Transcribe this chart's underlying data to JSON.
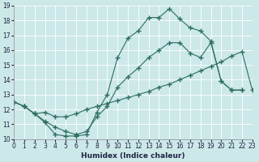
{
  "xlabel": "Humidex (Indice chaleur)",
  "xlim": [
    0,
    23
  ],
  "ylim": [
    10,
    19
  ],
  "xticks": [
    0,
    1,
    2,
    3,
    4,
    5,
    6,
    7,
    8,
    9,
    10,
    11,
    12,
    13,
    14,
    15,
    16,
    17,
    18,
    19,
    20,
    21,
    22,
    23
  ],
  "yticks": [
    10,
    11,
    12,
    13,
    14,
    15,
    16,
    17,
    18,
    19
  ],
  "bg_color": "#cce8e8",
  "grid_color": "#aacccc",
  "line_color": "#2d6e62",
  "line1_x": [
    0,
    1,
    2,
    3,
    4,
    5,
    6,
    7,
    8,
    9,
    10,
    11,
    12,
    13,
    14,
    15,
    16,
    17,
    18,
    19,
    20,
    21,
    22
  ],
  "line1_y": [
    12.5,
    12.2,
    11.7,
    11.1,
    10.3,
    10.2,
    10.2,
    10.3,
    11.8,
    13.0,
    15.5,
    16.8,
    17.3,
    18.2,
    18.2,
    18.8,
    18.1,
    17.5,
    17.3,
    16.6,
    13.9,
    13.3,
    13.3
  ],
  "line2_x": [
    0,
    1,
    2,
    3,
    4,
    5,
    6,
    7,
    8,
    9,
    10,
    11,
    12,
    13,
    14,
    15,
    16,
    17,
    18,
    19,
    20,
    21,
    22,
    23
  ],
  "line2_y": [
    12.5,
    12.2,
    11.7,
    11.8,
    11.5,
    11.5,
    11.7,
    12.0,
    12.2,
    12.4,
    12.6,
    12.8,
    13.0,
    13.2,
    13.5,
    13.7,
    14.0,
    14.3,
    14.6,
    14.9,
    15.2,
    15.6,
    15.9,
    13.3
  ],
  "line3_x": [
    0,
    1,
    2,
    3,
    4,
    5,
    6,
    7,
    8,
    9,
    10,
    11,
    12,
    13,
    14,
    15,
    16,
    17,
    18,
    19,
    20,
    21,
    22
  ],
  "line3_y": [
    12.5,
    12.2,
    11.7,
    11.2,
    10.8,
    10.5,
    10.3,
    10.5,
    11.5,
    12.2,
    13.5,
    14.2,
    14.8,
    15.5,
    16.0,
    16.5,
    16.5,
    15.8,
    15.5,
    16.5,
    13.9,
    13.3,
    13.3
  ]
}
